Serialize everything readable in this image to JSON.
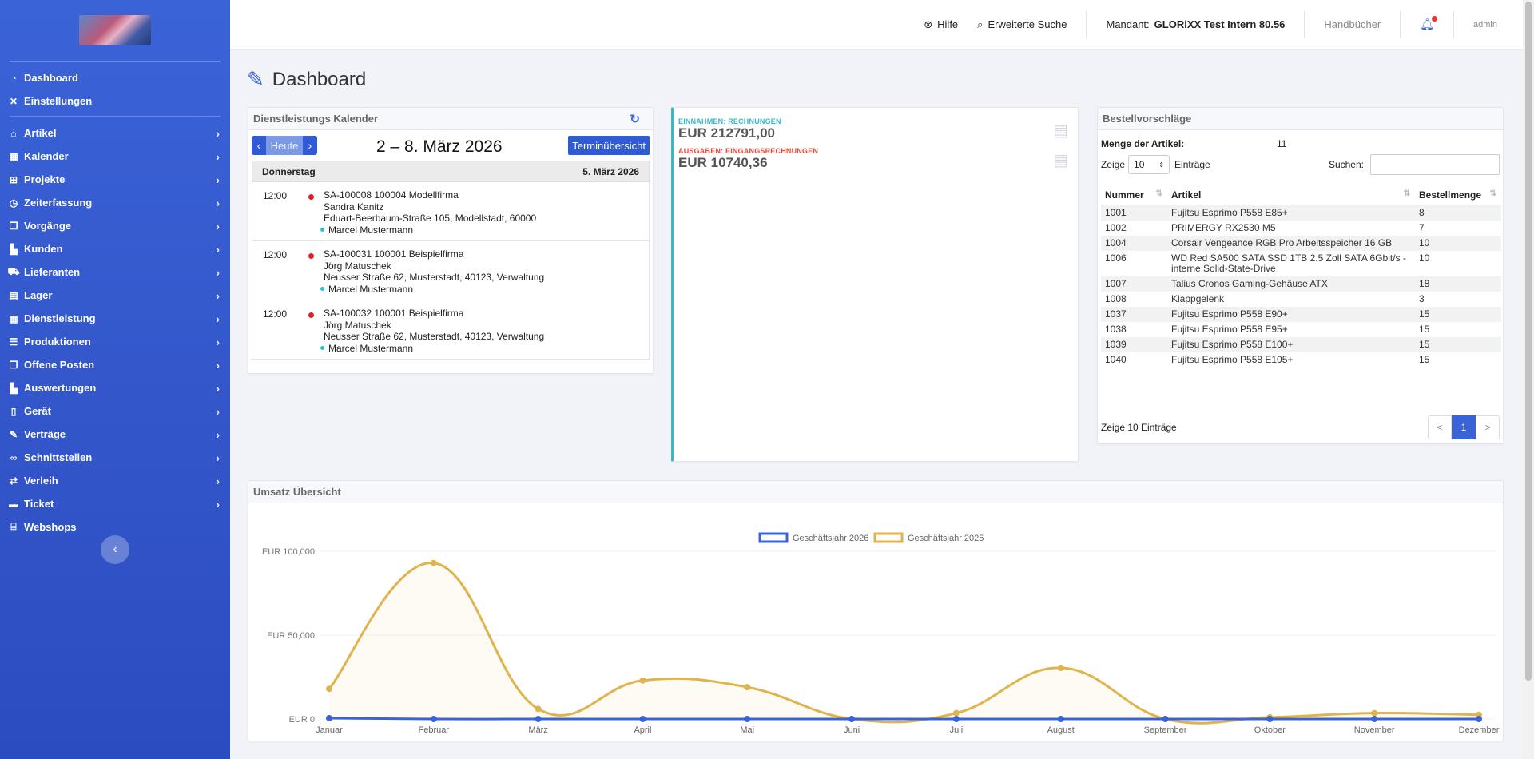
{
  "sidebar": {
    "top": [
      {
        "label": "Dashboard",
        "icon": "tachometer-icon"
      },
      {
        "label": "Einstellungen",
        "icon": "wrench-icon"
      }
    ],
    "items": [
      {
        "label": "Artikel",
        "icon": "home-icon"
      },
      {
        "label": "Kalender",
        "icon": "calendar-icon"
      },
      {
        "label": "Projekte",
        "icon": "sitemap-icon"
      },
      {
        "label": "Zeiterfassung",
        "icon": "clock-icon"
      },
      {
        "label": "Vorgänge",
        "icon": "copy-icon"
      },
      {
        "label": "Kunden",
        "icon": "chart-icon"
      },
      {
        "label": "Lieferanten",
        "icon": "truck-icon"
      },
      {
        "label": "Lager",
        "icon": "file-icon"
      },
      {
        "label": "Dienstleistung",
        "icon": "calendar-icon"
      },
      {
        "label": "Produktionen",
        "icon": "list-icon"
      },
      {
        "label": "Offene Posten",
        "icon": "copy-icon"
      },
      {
        "label": "Auswertungen",
        "icon": "chart-icon"
      },
      {
        "label": "Gerät",
        "icon": "phone-icon"
      },
      {
        "label": "Verträge",
        "icon": "edit-icon"
      },
      {
        "label": "Schnittstellen",
        "icon": "link-icon"
      },
      {
        "label": "Verleih",
        "icon": "exchange-icon"
      },
      {
        "label": "Ticket",
        "icon": "ticket-icon"
      },
      {
        "label": "Webshops",
        "icon": "store-icon"
      }
    ],
    "collapse_glyph": "‹"
  },
  "topbar": {
    "help": "Hilfe",
    "search": "Erweiterte Suche",
    "tenant_label": "Mandant:",
    "tenant_value": "GLORiXX Test Intern 80.56",
    "manuals": "Handbücher",
    "user": "admin"
  },
  "page": {
    "title": "Dashboard"
  },
  "calendar": {
    "title": "Dienstleistungs Kalender",
    "today": "Heute",
    "range": "2 – 8. März 2026",
    "overview": "Terminübersicht",
    "day_name": "Donnerstag",
    "day_date": "5. März 2026",
    "events": [
      {
        "time": "12:00",
        "line1": "SA-100008 100004 Modellfirma",
        "line2": "Sandra Kanitz",
        "line3": "Eduart-Beerbaum-Straße 105, Modellstadt, 60000",
        "person": "Marcel Mustermann"
      },
      {
        "time": "12:00",
        "line1": "SA-100031 100001 Beispielfirma",
        "line2": "Jörg Matuschek",
        "line3": "Neusser Straße 62, Musterstadt, 40123, Verwaltung",
        "person": "Marcel Mustermann"
      },
      {
        "time": "12:00",
        "line1": "SA-100032 100001 Beispielfirma",
        "line2": "Jörg Matuschek",
        "line3": "Neusser Straße 62, Musterstadt, 40123, Verwaltung",
        "person": "Marcel Mustermann"
      }
    ]
  },
  "finance": {
    "income_label": "EINNAHMEN: RECHNUNGEN",
    "income_value": "EUR 212791,00",
    "income_color": "#36b9cc",
    "expense_label": "AUSGABEN: EINGANGSRECHNUNGEN",
    "expense_value": "EUR 10740,36",
    "expense_color": "#e74a3b"
  },
  "orders": {
    "title": "Bestellvorschläge",
    "count_label": "Menge der Artikel:",
    "count_value": "11",
    "show_label": "Zeige",
    "page_size": "10",
    "entries_label": "Einträge",
    "search_label": "Suchen:",
    "columns": [
      "Nummer",
      "Artikel",
      "Bestellmenge"
    ],
    "rows": [
      {
        "nr": "1001",
        "artikel": "Fujitsu Esprimo P558 E85+",
        "menge": "8"
      },
      {
        "nr": "1002",
        "artikel": "PRIMERGY RX2530 M5",
        "menge": "7"
      },
      {
        "nr": "1004",
        "artikel": "Corsair Vengeance RGB Pro Arbeitsspeicher 16 GB",
        "menge": "10"
      },
      {
        "nr": "1006",
        "artikel": "WD Red SA500 SATA SSD 1TB 2.5 Zoll SATA 6Gbit/s - interne Solid-State-Drive",
        "menge": "10"
      },
      {
        "nr": "1007",
        "artikel": "Talius Cronos Gaming-Gehäuse ATX",
        "menge": "18"
      },
      {
        "nr": "1008",
        "artikel": "Klappgelenk",
        "menge": "3"
      },
      {
        "nr": "1037",
        "artikel": "Fujitsu Esprimo P558 E90+",
        "menge": "15"
      },
      {
        "nr": "1038",
        "artikel": "Fujitsu Esprimo P558 E95+",
        "menge": "15"
      },
      {
        "nr": "1039",
        "artikel": "Fujitsu Esprimo P558 E100+",
        "menge": "15"
      },
      {
        "nr": "1040",
        "artikel": "Fujitsu Esprimo P558 E105+",
        "menge": "15"
      }
    ],
    "footer": "Zeige 10 Einträge",
    "pager": {
      "prev": "<",
      "page": "1",
      "next": ">"
    }
  },
  "chart_data": {
    "type": "line",
    "title": "Umsatz Übersicht",
    "categories": [
      "Januar",
      "Februar",
      "März",
      "April",
      "Mai",
      "Juni",
      "Juli",
      "August",
      "September",
      "Oktober",
      "November",
      "Dezember"
    ],
    "series": [
      {
        "name": "Geschäftsjahr 2026",
        "color": "#3b63d8",
        "values": [
          500,
          0,
          0,
          0,
          0,
          0,
          0,
          0,
          0,
          0,
          0,
          0
        ]
      },
      {
        "name": "Geschäftsjahr 2025",
        "color": "#e0b44c",
        "values": [
          18000,
          93000,
          6000,
          23000,
          19000,
          0,
          3500,
          30500,
          0,
          1000,
          3500,
          2500
        ]
      }
    ],
    "ylim": [
      0,
      100000
    ],
    "yticks": [
      {
        "value": 0,
        "label": "EUR 0"
      },
      {
        "value": 50000,
        "label": "EUR 50,000"
      },
      {
        "value": 100000,
        "label": "EUR 100,000"
      }
    ],
    "legend": "top-center",
    "grid": true
  }
}
